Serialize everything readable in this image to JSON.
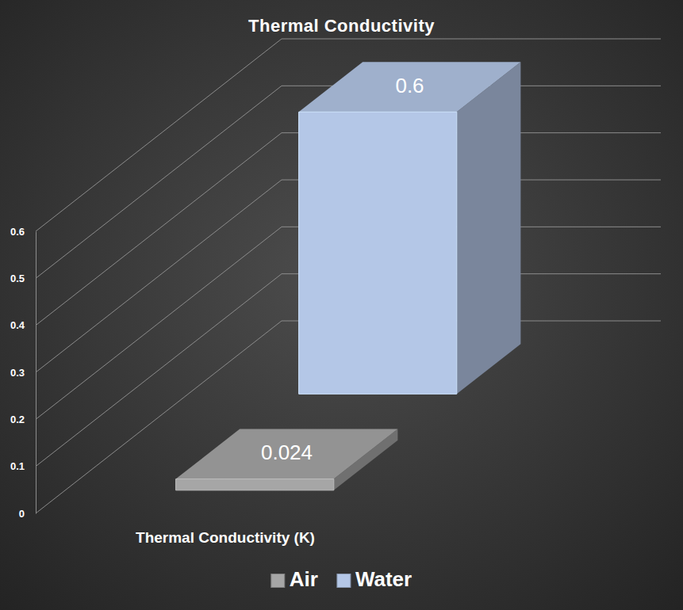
{
  "chart_data": {
    "type": "bar",
    "title": "Thermal Conductivity",
    "categories": [
      "Thermal Conductivity (K)"
    ],
    "series": [
      {
        "name": "Air",
        "color": "#a6a6a6",
        "values": [
          0.024
        ]
      },
      {
        "name": "Water",
        "color": "#b4c7e7",
        "values": [
          0.6
        ]
      }
    ],
    "ylim": [
      0,
      0.6
    ],
    "yticks": [
      0,
      0.1,
      0.2,
      0.3,
      0.4,
      0.5,
      0.6
    ],
    "grid": true,
    "legend": "bottom",
    "data_labels": true
  }
}
